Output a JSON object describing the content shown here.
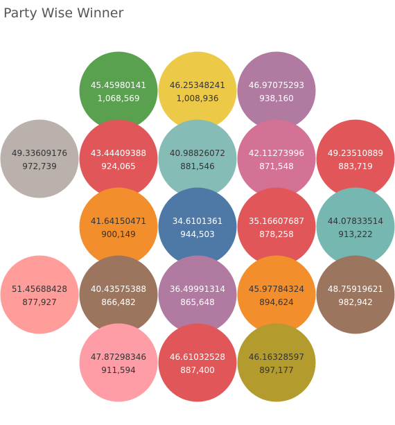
{
  "chart_data": {
    "type": "packed-bubble",
    "title": "Party Wise Winner",
    "bubbles": [
      {
        "label": "45.45980141",
        "value": "1,068,569",
        "color": "#59a14f",
        "text_color": "#ffffff"
      },
      {
        "label": "46.25348241",
        "value": "1,008,936",
        "color": "#edc948",
        "text_color": "#333333"
      },
      {
        "label": "46.97075293",
        "value": "938,160",
        "color": "#b07aa1",
        "text_color": "#ffffff"
      },
      {
        "label": "49.33609176",
        "value": "972,739",
        "color": "#bab0ac",
        "text_color": "#333333"
      },
      {
        "label": "43.44409388",
        "value": "924,065",
        "color": "#e15759",
        "text_color": "#ffffff"
      },
      {
        "label": "40.98826072",
        "value": "881,546",
        "color": "#86bcb6",
        "text_color": "#333333"
      },
      {
        "label": "42.11273996",
        "value": "871,548",
        "color": "#d37295",
        "text_color": "#ffffff"
      },
      {
        "label": "49.23510889",
        "value": "883,719",
        "color": "#e15759",
        "text_color": "#ffffff"
      },
      {
        "label": "41.64150471",
        "value": "900,149",
        "color": "#f28e2b",
        "text_color": "#333333"
      },
      {
        "label": "34.6101361",
        "value": "944,503",
        "color": "#4e79a7",
        "text_color": "#ffffff"
      },
      {
        "label": "35.16607687",
        "value": "878,258",
        "color": "#e15759",
        "text_color": "#ffffff"
      },
      {
        "label": "44.07833514",
        "value": "913,222",
        "color": "#76b7b2",
        "text_color": "#333333"
      },
      {
        "label": "51.45688428",
        "value": "877,927",
        "color": "#ff9d9a",
        "text_color": "#333333"
      },
      {
        "label": "40.43575388",
        "value": "866,482",
        "color": "#9c755f",
        "text_color": "#ffffff"
      },
      {
        "label": "36.49991314",
        "value": "865,648",
        "color": "#b07aa1",
        "text_color": "#ffffff"
      },
      {
        "label": "45.97784324",
        "value": "894,624",
        "color": "#f28e2b",
        "text_color": "#333333"
      },
      {
        "label": "48.75919621",
        "value": "982,942",
        "color": "#9c755f",
        "text_color": "#ffffff"
      },
      {
        "label": "47.87298346",
        "value": "911,594",
        "color": "#ff9da7",
        "text_color": "#333333"
      },
      {
        "label": "46.61032528",
        "value": "887,400",
        "color": "#e15759",
        "text_color": "#ffffff"
      },
      {
        "label": "46.16328597",
        "value": "897,177",
        "color": "#b39b2d",
        "text_color": "#333333"
      }
    ]
  }
}
